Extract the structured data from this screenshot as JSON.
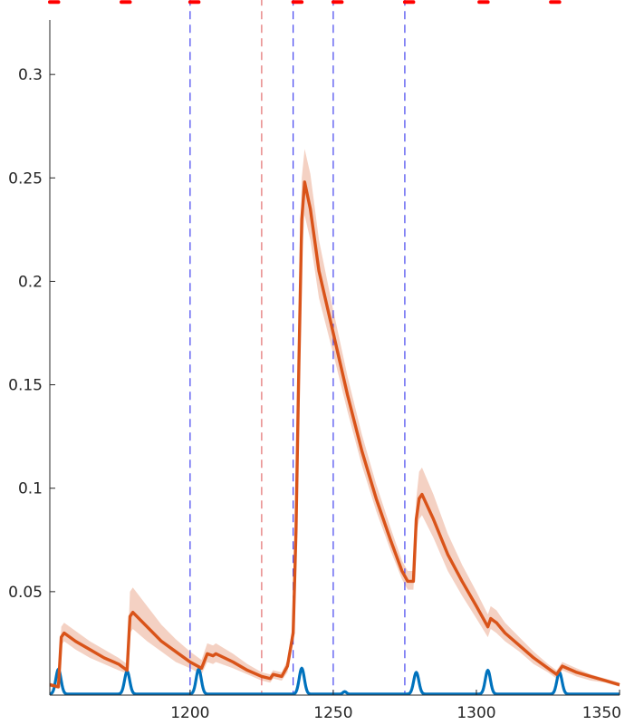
{
  "chart_data": {
    "type": "line",
    "xlim": [
      1151,
      1350
    ],
    "ylim": [
      0,
      0.336
    ],
    "x_ticks": [
      {
        "value": 1200,
        "label": "1200"
      },
      {
        "value": 1250,
        "label": "1250"
      },
      {
        "value": 1300,
        "label": "1300"
      },
      {
        "value": 1350,
        "label": "1350"
      }
    ],
    "y_ticks": [
      {
        "value": 0.05,
        "label": "0.05"
      },
      {
        "value": 0.1,
        "label": "0.1"
      },
      {
        "value": 0.15,
        "label": "0.15"
      },
      {
        "value": 0.2,
        "label": "0.2"
      },
      {
        "value": 0.25,
        "label": "0.25"
      },
      {
        "value": 0.3,
        "label": "0.3"
      }
    ],
    "grid": false,
    "colors": {
      "blue": "#0072BD",
      "orange": "#D95319",
      "band": "#F2C9B8",
      "vline_blue": "#3333EE",
      "vline_red": "#E06060",
      "marker_red": "#FF0000",
      "axis": "#262626"
    },
    "series": [
      {
        "color": "orange",
        "values": [
          [
            1151,
            0.005
          ],
          [
            1154,
            0.004
          ],
          [
            1155,
            0.028
          ],
          [
            1156,
            0.03
          ],
          [
            1160,
            0.026
          ],
          [
            1165,
            0.022
          ],
          [
            1170,
            0.018
          ],
          [
            1175,
            0.015
          ],
          [
            1177,
            0.013
          ],
          [
            1178,
            0.012
          ],
          [
            1179,
            0.038
          ],
          [
            1180,
            0.04
          ],
          [
            1185,
            0.033
          ],
          [
            1190,
            0.026
          ],
          [
            1195,
            0.021
          ],
          [
            1200,
            0.016
          ],
          [
            1204,
            0.013
          ],
          [
            1206,
            0.02
          ],
          [
            1208,
            0.019
          ],
          [
            1209,
            0.02
          ],
          [
            1215,
            0.016
          ],
          [
            1220,
            0.012
          ],
          [
            1225,
            0.009
          ],
          [
            1228,
            0.008
          ],
          [
            1229,
            0.01
          ],
          [
            1232,
            0.009
          ],
          [
            1234,
            0.014
          ],
          [
            1236,
            0.03
          ],
          [
            1237,
            0.08
          ],
          [
            1238,
            0.16
          ],
          [
            1239,
            0.23
          ],
          [
            1240,
            0.248
          ],
          [
            1242,
            0.235
          ],
          [
            1245,
            0.205
          ],
          [
            1250,
            0.175
          ],
          [
            1255,
            0.145
          ],
          [
            1260,
            0.118
          ],
          [
            1265,
            0.095
          ],
          [
            1270,
            0.075
          ],
          [
            1274,
            0.06
          ],
          [
            1276,
            0.055
          ],
          [
            1278,
            0.055
          ],
          [
            1279,
            0.085
          ],
          [
            1280,
            0.095
          ],
          [
            1281,
            0.097
          ],
          [
            1285,
            0.085
          ],
          [
            1290,
            0.068
          ],
          [
            1295,
            0.055
          ],
          [
            1300,
            0.043
          ],
          [
            1304,
            0.033
          ],
          [
            1305,
            0.037
          ],
          [
            1306,
            0.036
          ],
          [
            1307,
            0.035
          ],
          [
            1310,
            0.03
          ],
          [
            1315,
            0.024
          ],
          [
            1320,
            0.018
          ],
          [
            1325,
            0.013
          ],
          [
            1328,
            0.01
          ],
          [
            1330,
            0.014
          ],
          [
            1335,
            0.011
          ],
          [
            1340,
            0.009
          ],
          [
            1345,
            0.007
          ],
          [
            1350,
            0.005
          ]
        ],
        "band_upper": [
          [
            1151,
            0.006
          ],
          [
            1154,
            0.005
          ],
          [
            1155,
            0.033
          ],
          [
            1156,
            0.035
          ],
          [
            1160,
            0.031
          ],
          [
            1165,
            0.026
          ],
          [
            1170,
            0.022
          ],
          [
            1175,
            0.018
          ],
          [
            1177,
            0.016
          ],
          [
            1178,
            0.015
          ],
          [
            1179,
            0.05
          ],
          [
            1180,
            0.052
          ],
          [
            1185,
            0.043
          ],
          [
            1190,
            0.034
          ],
          [
            1195,
            0.027
          ],
          [
            1200,
            0.021
          ],
          [
            1204,
            0.017
          ],
          [
            1206,
            0.025
          ],
          [
            1208,
            0.024
          ],
          [
            1209,
            0.025
          ],
          [
            1215,
            0.02
          ],
          [
            1220,
            0.015
          ],
          [
            1225,
            0.011
          ],
          [
            1228,
            0.01
          ],
          [
            1229,
            0.012
          ],
          [
            1232,
            0.011
          ],
          [
            1234,
            0.017
          ],
          [
            1236,
            0.036
          ],
          [
            1237,
            0.095
          ],
          [
            1238,
            0.18
          ],
          [
            1239,
            0.25
          ],
          [
            1240,
            0.264
          ],
          [
            1242,
            0.252
          ],
          [
            1245,
            0.22
          ],
          [
            1250,
            0.186
          ],
          [
            1255,
            0.154
          ],
          [
            1260,
            0.126
          ],
          [
            1265,
            0.102
          ],
          [
            1270,
            0.081
          ],
          [
            1274,
            0.065
          ],
          [
            1276,
            0.06
          ],
          [
            1278,
            0.06
          ],
          [
            1279,
            0.095
          ],
          [
            1280,
            0.108
          ],
          [
            1281,
            0.11
          ],
          [
            1285,
            0.097
          ],
          [
            1290,
            0.078
          ],
          [
            1295,
            0.063
          ],
          [
            1300,
            0.05
          ],
          [
            1304,
            0.039
          ],
          [
            1305,
            0.043
          ],
          [
            1306,
            0.042
          ],
          [
            1307,
            0.041
          ],
          [
            1310,
            0.035
          ],
          [
            1315,
            0.028
          ],
          [
            1320,
            0.021
          ],
          [
            1325,
            0.015
          ],
          [
            1328,
            0.012
          ],
          [
            1330,
            0.016
          ],
          [
            1335,
            0.013
          ],
          [
            1340,
            0.01
          ],
          [
            1345,
            0.008
          ],
          [
            1350,
            0.006
          ]
        ],
        "band_lower": [
          [
            1151,
            0.004
          ],
          [
            1154,
            0.003
          ],
          [
            1155,
            0.024
          ],
          [
            1156,
            0.026
          ],
          [
            1160,
            0.022
          ],
          [
            1165,
            0.018
          ],
          [
            1170,
            0.015
          ],
          [
            1175,
            0.012
          ],
          [
            1177,
            0.011
          ],
          [
            1178,
            0.01
          ],
          [
            1179,
            0.03
          ],
          [
            1180,
            0.032
          ],
          [
            1185,
            0.026
          ],
          [
            1190,
            0.021
          ],
          [
            1195,
            0.016
          ],
          [
            1200,
            0.013
          ],
          [
            1204,
            0.01
          ],
          [
            1206,
            0.016
          ],
          [
            1208,
            0.015
          ],
          [
            1209,
            0.016
          ],
          [
            1215,
            0.013
          ],
          [
            1220,
            0.01
          ],
          [
            1225,
            0.007
          ],
          [
            1228,
            0.006
          ],
          [
            1229,
            0.008
          ],
          [
            1232,
            0.007
          ],
          [
            1234,
            0.011
          ],
          [
            1236,
            0.025
          ],
          [
            1237,
            0.068
          ],
          [
            1238,
            0.14
          ],
          [
            1239,
            0.212
          ],
          [
            1240,
            0.232
          ],
          [
            1242,
            0.22
          ],
          [
            1245,
            0.192
          ],
          [
            1250,
            0.165
          ],
          [
            1255,
            0.137
          ],
          [
            1260,
            0.111
          ],
          [
            1265,
            0.089
          ],
          [
            1270,
            0.07
          ],
          [
            1274,
            0.056
          ],
          [
            1276,
            0.051
          ],
          [
            1278,
            0.051
          ],
          [
            1279,
            0.077
          ],
          [
            1280,
            0.085
          ],
          [
            1281,
            0.087
          ],
          [
            1285,
            0.076
          ],
          [
            1290,
            0.06
          ],
          [
            1295,
            0.048
          ],
          [
            1300,
            0.037
          ],
          [
            1304,
            0.028
          ],
          [
            1305,
            0.032
          ],
          [
            1306,
            0.031
          ],
          [
            1307,
            0.03
          ],
          [
            1310,
            0.026
          ],
          [
            1315,
            0.021
          ],
          [
            1320,
            0.015
          ],
          [
            1325,
            0.011
          ],
          [
            1328,
            0.008
          ],
          [
            1330,
            0.012
          ],
          [
            1335,
            0.009
          ],
          [
            1340,
            0.007
          ],
          [
            1345,
            0.006
          ],
          [
            1350,
            0.004
          ]
        ]
      },
      {
        "color": "blue",
        "baseline": 0.0005,
        "peaks": [
          {
            "center": 1154,
            "height": 0.012,
            "width": 0.9
          },
          {
            "center": 1178,
            "height": 0.011,
            "width": 0.9
          },
          {
            "center": 1203,
            "height": 0.012,
            "width": 0.9
          },
          {
            "center": 1239,
            "height": 0.0125,
            "width": 0.9
          },
          {
            "center": 1254,
            "height": 0.0012,
            "width": 0.6
          },
          {
            "center": 1279,
            "height": 0.0105,
            "width": 0.9
          },
          {
            "center": 1304,
            "height": 0.0115,
            "width": 0.9
          },
          {
            "center": 1329,
            "height": 0.0105,
            "width": 0.9
          }
        ]
      }
    ],
    "vlines": [
      {
        "x": 1200,
        "color": "vline_blue"
      },
      {
        "x": 1225,
        "color": "vline_red"
      },
      {
        "x": 1236,
        "color": "vline_blue"
      },
      {
        "x": 1250,
        "color": "vline_blue"
      },
      {
        "x": 1275,
        "color": "vline_blue"
      }
    ],
    "event_markers": [
      {
        "start": 1151,
        "end": 1154
      },
      {
        "start": 1176,
        "end": 1179
      },
      {
        "start": 1200,
        "end": 1203
      },
      {
        "start": 1236,
        "end": 1239
      },
      {
        "start": 1250,
        "end": 1253
      },
      {
        "start": 1275,
        "end": 1278
      },
      {
        "start": 1301,
        "end": 1304
      },
      {
        "start": 1326,
        "end": 1329
      }
    ],
    "marker_y": 0.335
  }
}
